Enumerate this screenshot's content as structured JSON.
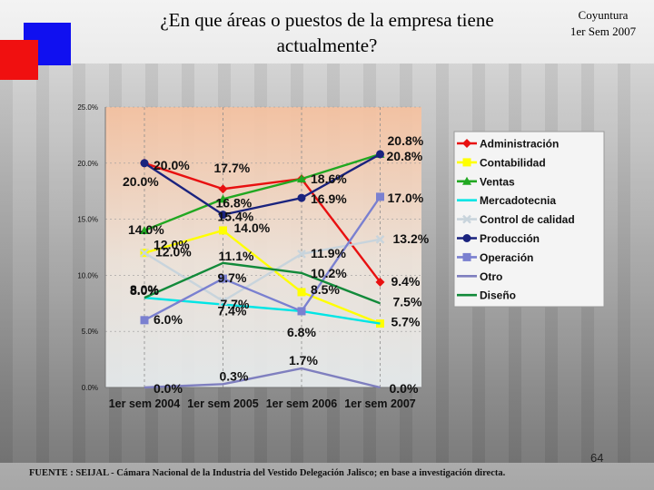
{
  "header": {
    "title_line1": "¿En que áreas o puestos de la empresa tiene",
    "title_line2": "actualmente?",
    "subtitle_line1": "Coyuntura",
    "subtitle_line2": "1er Sem 2007"
  },
  "footer": {
    "source": "FUENTE : SEIJAL - Cámara Nacional de la Industria del Vestido Delegación Jalisco; en base a investigación directa.",
    "page_number": "64"
  },
  "chart_data": {
    "type": "line",
    "title": "¿En que áreas o puestos de la empresa tiene actualmente?",
    "categories": [
      "1er sem 2004",
      "1er sem 2005",
      "1er sem 2006",
      "1er sem 2007"
    ],
    "ylim": [
      0,
      25
    ],
    "yticks": [
      "0.0%",
      "5.0%",
      "10.0%",
      "15.0%",
      "20.0%",
      "25.0%"
    ],
    "yticks_values": [
      0,
      5,
      10,
      15,
      20,
      25
    ],
    "grid": true,
    "legend_position": "right",
    "series": [
      {
        "name": "Administración",
        "values": [
          20.0,
          17.7,
          18.6,
          9.4
        ],
        "labels": [
          "20.0%",
          "17.7%",
          "18.6%",
          "9.4%"
        ],
        "color": "#e81010",
        "marker": "diamond"
      },
      {
        "name": "Contabilidad",
        "values": [
          12.0,
          14.0,
          8.5,
          5.7
        ],
        "labels": [
          "12.0%",
          "14.0%",
          "8.5%",
          "5.7%"
        ],
        "color": "#ffff00",
        "marker": "square"
      },
      {
        "name": "Ventas",
        "values": [
          14.0,
          16.8,
          18.6,
          20.8
        ],
        "labels": [
          "14.0%",
          "16.8%",
          "",
          "20.8%"
        ],
        "color": "#21a821",
        "marker": "triangle"
      },
      {
        "name": "Mercadotecnia",
        "values": [
          8.0,
          7.4,
          6.8,
          5.7
        ],
        "labels": [
          "8.0%",
          "7.4%",
          "6.8%",
          ""
        ],
        "color": "#00e5e5",
        "marker": "none"
      },
      {
        "name": "Control de calidad",
        "values": [
          12.0,
          7.7,
          11.9,
          13.2
        ],
        "labels": [
          "12.0%",
          "7.7%",
          "11.9%",
          "13.2%"
        ],
        "color": "#c8d4dc",
        "marker": "x"
      },
      {
        "name": "Producción",
        "values": [
          20.0,
          15.4,
          16.9,
          20.8
        ],
        "labels": [
          "20.0%",
          "15.4%",
          "16.9%",
          "20.8%"
        ],
        "color": "#1a237e",
        "marker": "circle"
      },
      {
        "name": "Operación",
        "values": [
          6.0,
          9.7,
          6.8,
          17.0
        ],
        "labels": [
          "6.0%",
          "9.7%",
          "",
          "17.0%"
        ],
        "color": "#7a80d0",
        "marker": "square"
      },
      {
        "name": "Otro",
        "values": [
          0.0,
          0.3,
          1.7,
          0.0
        ],
        "labels": [
          "0.0%",
          "0.3%",
          "1.7%",
          "0.0%"
        ],
        "color": "#7f7fbf",
        "marker": "none"
      },
      {
        "name": "Diseño",
        "values": [
          8.0,
          11.1,
          10.2,
          7.5
        ],
        "labels": [
          "8.0%",
          "11.1%",
          "10.2%",
          "7.5%"
        ],
        "color": "#128a3a",
        "marker": "none"
      }
    ]
  }
}
